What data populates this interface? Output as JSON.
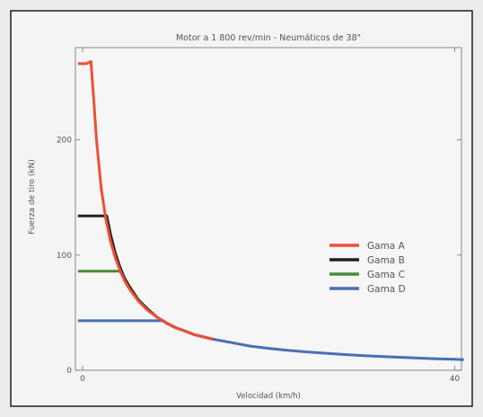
{
  "chart_data": {
    "type": "line",
    "title": "Motor a 1 800 rev/min - Neumáticos de 38\"",
    "xlabel": "Velocidad (km/h)",
    "ylabel": "Fuerza de tiro (kN)",
    "xlim": [
      0,
      41.5
    ],
    "ylim": [
      0,
      280
    ],
    "xticks": [
      0,
      40
    ],
    "yticks": [
      0,
      100,
      200
    ],
    "grid": false,
    "legend_position": "right",
    "series": [
      {
        "name": "Gama A",
        "color": "#f04e36",
        "x": [
          -0.5,
          0.4,
          0.9,
          1.2,
          1.5,
          2.0,
          2.5,
          3.0,
          3.5,
          4.0,
          4.5,
          5.0,
          6.0,
          7.0,
          8.0,
          9.0,
          10.0,
          11.0,
          12.0,
          14.0
        ],
        "y": [
          266,
          266,
          268,
          235,
          200,
          158,
          131,
          112,
          98,
          87,
          78,
          71,
          60,
          52,
          46,
          41,
          37,
          34,
          31,
          27
        ]
      },
      {
        "name": "Gama B",
        "color": "#231f20",
        "x": [
          -0.5,
          2.6,
          3.0,
          3.5,
          4.0,
          4.5,
          5.0,
          6.0,
          7.0,
          8.0,
          9.0,
          10.0,
          11.0,
          12.0,
          14.0
        ],
        "y": [
          134,
          134,
          118,
          102,
          90,
          80,
          73,
          61,
          53,
          46,
          41,
          37,
          34,
          31,
          27
        ]
      },
      {
        "name": "Gama C",
        "color": "#4a8a3a",
        "x": [
          -0.5,
          4.0,
          4.5,
          5.0,
          6.0,
          7.0,
          8.0,
          9.0,
          10.0,
          11.0,
          12.0,
          14.0
        ],
        "y": [
          86,
          86,
          80,
          73,
          61,
          53,
          46,
          41,
          37,
          34,
          31,
          27
        ]
      },
      {
        "name": "Gama D",
        "color": "#4a6fb4",
        "x": [
          -0.5,
          8.7,
          9.0,
          10.0,
          11.0,
          12.0,
          14.0,
          16.0,
          18.0,
          20.0,
          22.0,
          24.0,
          26.0,
          28.0,
          30.0,
          32.0,
          34.0,
          36.0,
          38.0,
          40.0,
          41.0
        ],
        "y": [
          43,
          43,
          41,
          37,
          34,
          31,
          27,
          24,
          21,
          19,
          17.3,
          16,
          14.8,
          13.7,
          12.8,
          12,
          11.3,
          10.6,
          10,
          9.5,
          9.2
        ]
      }
    ]
  }
}
